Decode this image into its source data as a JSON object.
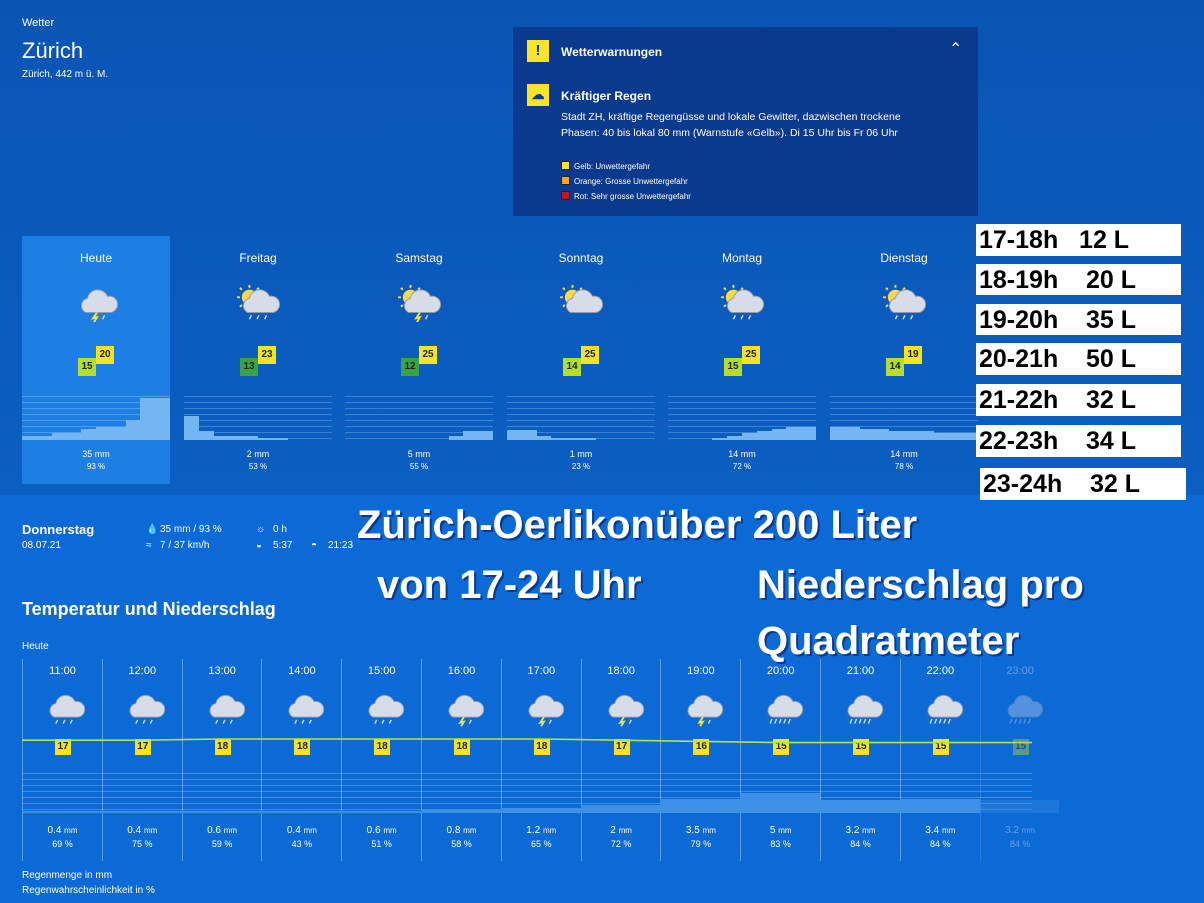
{
  "header": {
    "section": "Wetter",
    "city": "Zürich",
    "location": "Zürich, 442 m ü. M."
  },
  "warnings": {
    "title": "Wetterwarnungen",
    "item_title": "Kräftiger Regen",
    "text_line1": "Stadt ZH, kräftige Regengüsse und lokale Gewitter, dazwischen trockene",
    "text_line2": "Phasen: 40 bis lokal 80 mm (Warnstufe «Gelb»). Di 15 Uhr bis Fr 06 Uhr",
    "legend": [
      {
        "label": "Gelb: Unwettergefahr",
        "color": "#f7e42b"
      },
      {
        "label": "Orange: Grosse Unwettergefahr",
        "color": "#f5a623"
      },
      {
        "label": "Rot: Sehr grosse Unwettergefahr",
        "color": "#c0171f"
      }
    ]
  },
  "days": [
    {
      "label": "Heute",
      "low": "15",
      "high": "20",
      "mm": "35 mm",
      "pct": "93 %",
      "icon": "thunder-cloud-icon",
      "bars": [
        0.1,
        0.1,
        0.15,
        0.15,
        0.25,
        0.3,
        0.3,
        0.45,
        0.95,
        0.95
      ]
    },
    {
      "label": "Freitag",
      "low": "13",
      "high": "23",
      "mm": "2 mm",
      "pct": "53 %",
      "icon": "sun-rain-cloud-icon",
      "bars": [
        0.55,
        0.2,
        0.08,
        0.08,
        0.08,
        0.05,
        0.05,
        0.0,
        0.0,
        0.0
      ]
    },
    {
      "label": "Samstag",
      "low": "12",
      "high": "25",
      "mm": "5 mm",
      "pct": "55 %",
      "icon": "sun-thunder-cloud-icon",
      "bars": [
        0,
        0,
        0,
        0,
        0,
        0,
        0,
        0.08,
        0.2,
        0.2
      ]
    },
    {
      "label": "Sonntag",
      "low": "14",
      "high": "25",
      "mm": "1 mm",
      "pct": "23 %",
      "icon": "sun-cloud-icon",
      "bars": [
        0.22,
        0.22,
        0.1,
        0.05,
        0.05,
        0.05,
        0,
        0,
        0,
        0
      ]
    },
    {
      "label": "Montag",
      "low": "15",
      "high": "25",
      "mm": "14 mm",
      "pct": "72 %",
      "icon": "sun-rain-cloud-icon",
      "bars": [
        0,
        0,
        0,
        0.05,
        0.1,
        0.15,
        0.2,
        0.25,
        0.3,
        0.3
      ]
    },
    {
      "label": "Dienstag",
      "low": "14",
      "high": "19",
      "mm": "14 mm",
      "pct": "78 %",
      "icon": "sun-rain-cloud-icon",
      "bars": [
        0.3,
        0.3,
        0.25,
        0.25,
        0.2,
        0.2,
        0.2,
        0.15,
        0.15,
        0.15
      ]
    }
  ],
  "summary": {
    "day": "Donnerstag",
    "date": "08.07.21",
    "rain": "35 mm / 93 %",
    "wind": "7 / 37 km/h",
    "sun_hours": "0 h",
    "sunrise": "5:37",
    "sunset": "21:23"
  },
  "chart": {
    "title": "Temperatur und Niederschlag",
    "today": "Heute",
    "legend_mm": "Regenmenge in mm",
    "legend_pct": "Regenwahrscheinlichkeit in %"
  },
  "hours": [
    {
      "time": "11:00",
      "temp": "17",
      "mm": "0.4",
      "pct": "69 %",
      "icon": "rain-cloud-icon"
    },
    {
      "time": "12:00",
      "temp": "17",
      "mm": "0.4",
      "pct": "75 %",
      "icon": "rain-cloud-icon"
    },
    {
      "time": "13:00",
      "temp": "18",
      "mm": "0.6",
      "pct": "59 %",
      "icon": "rain-cloud-icon"
    },
    {
      "time": "14:00",
      "temp": "18",
      "mm": "0.4",
      "pct": "43 %",
      "icon": "rain-cloud-icon"
    },
    {
      "time": "15:00",
      "temp": "18",
      "mm": "0.6",
      "pct": "51 %",
      "icon": "rain-cloud-icon"
    },
    {
      "time": "16:00",
      "temp": "18",
      "mm": "0.8",
      "pct": "58 %",
      "icon": "thunder-cloud-icon"
    },
    {
      "time": "17:00",
      "temp": "18",
      "mm": "1.2",
      "pct": "65 %",
      "icon": "thunder-cloud-icon"
    },
    {
      "time": "18:00",
      "temp": "17",
      "mm": "2",
      "pct": "72 %",
      "icon": "thunder-cloud-icon"
    },
    {
      "time": "19:00",
      "temp": "16",
      "mm": "3.5",
      "pct": "79 %",
      "icon": "thunder-cloud-icon"
    },
    {
      "time": "20:00",
      "temp": "15",
      "mm": "5",
      "pct": "83 %",
      "icon": "heavy-rain-cloud-icon"
    },
    {
      "time": "21:00",
      "temp": "15",
      "mm": "3.2",
      "pct": "84 %",
      "icon": "heavy-rain-cloud-icon"
    },
    {
      "time": "22:00",
      "temp": "15",
      "mm": "3.4",
      "pct": "84 %",
      "icon": "heavy-rain-cloud-icon"
    },
    {
      "time": "23:00",
      "temp": "15",
      "mm": "3.2",
      "pct": "84 %",
      "icon": "heavy-rain-cloud-icon"
    }
  ],
  "mm_unit": "mm",
  "annotations": {
    "hourly_liters": [
      "17-18h   12 L",
      "18-19h    20 L",
      "19-20h    35 L",
      "20-21h    50 L",
      "21-22h    32 L",
      "22-23h    34 L",
      "23-24h    32 L"
    ],
    "overlay_line1": "Zürich-Oerlikonüber 200 Liter",
    "overlay_line2a": "von 17-24 Uhr",
    "overlay_line2b": "Niederschlag pro",
    "overlay_line3": "Quadratmeter"
  }
}
